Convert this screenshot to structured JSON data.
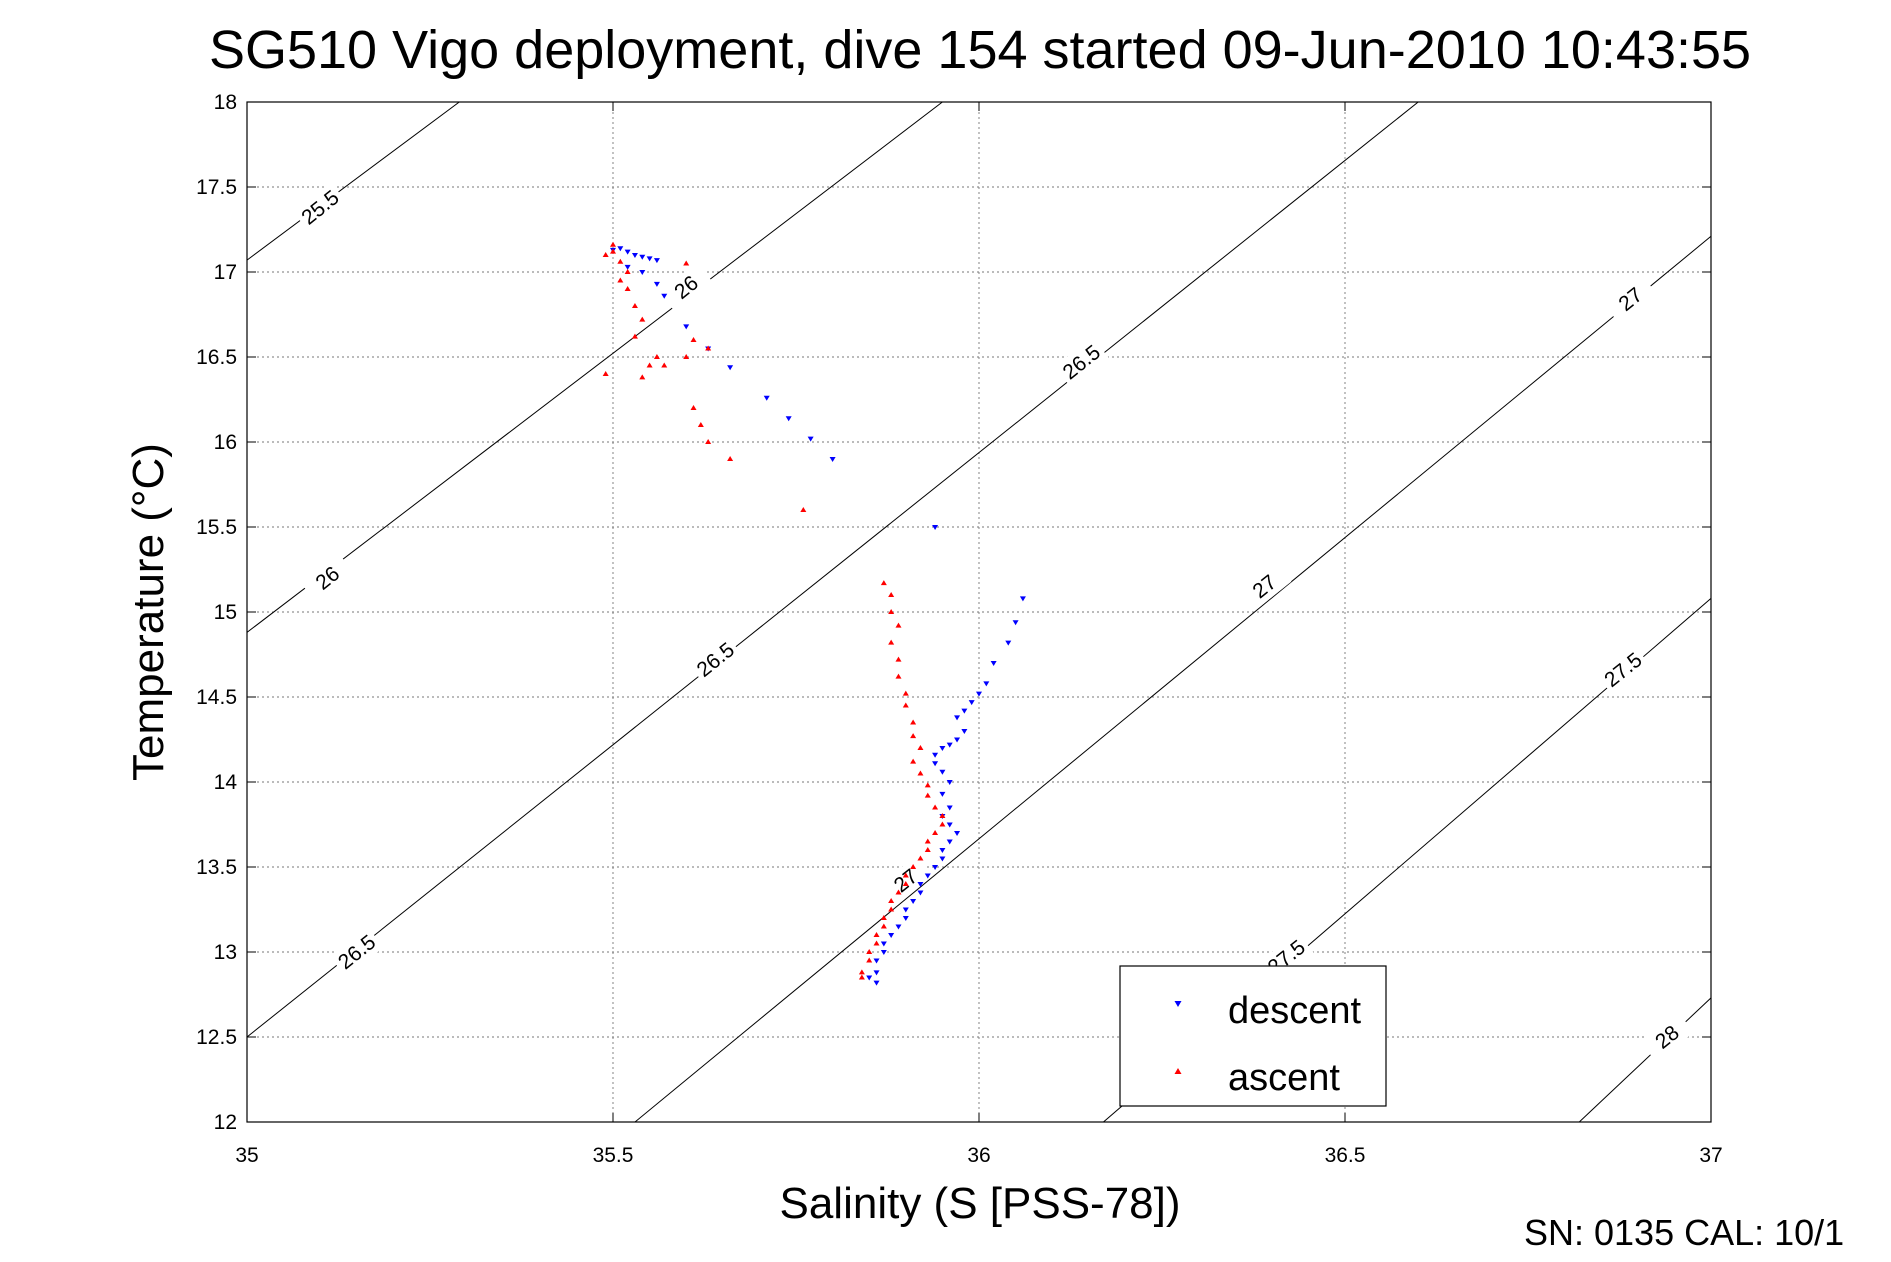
{
  "chart_data": {
    "type": "scatter",
    "title": "SG510 Vigo deployment, dive 154 started 09-Jun-2010 10:43:55",
    "xlabel": "Salinity (S [PSS-78])",
    "ylabel": "Temperature (°C)",
    "xlim": [
      35,
      37
    ],
    "ylim": [
      12,
      18
    ],
    "x_ticks": [
      "35",
      "35.5",
      "36",
      "36.5",
      "37"
    ],
    "y_ticks": [
      "12",
      "12.5",
      "13",
      "13.5",
      "14",
      "14.5",
      "15",
      "15.5",
      "16",
      "16.5",
      "17",
      "17.5",
      "18"
    ],
    "grid": true,
    "legend": {
      "position": "bottom-right",
      "entries": [
        "descent",
        "ascent"
      ]
    },
    "density_contours": {
      "levels": [
        25.5,
        26,
        26.5,
        27,
        27.5,
        28
      ],
      "lines": [
        {
          "level": 25.5,
          "from": [
            35.0,
            17.07
          ],
          "to": [
            35.29,
            18.0
          ]
        },
        {
          "level": 26,
          "from": [
            35.0,
            14.88
          ],
          "to": [
            35.95,
            18.0
          ]
        },
        {
          "level": 26.5,
          "from": [
            35.0,
            12.5
          ],
          "to": [
            36.6,
            18.0
          ]
        },
        {
          "level": 27,
          "from": [
            35.53,
            12.0
          ],
          "to": [
            37.0,
            17.21
          ]
        },
        {
          "level": 27.5,
          "from": [
            36.17,
            12.0
          ],
          "to": [
            37.0,
            15.08
          ]
        },
        {
          "level": 28,
          "from": [
            36.82,
            12.0
          ],
          "to": [
            37.0,
            12.73
          ]
        }
      ],
      "labels": [
        {
          "text": "25.5",
          "x": 35.1,
          "y": 17.38
        },
        {
          "text": "26",
          "x": 35.11,
          "y": 15.2
        },
        {
          "text": "26",
          "x": 35.6,
          "y": 16.91
        },
        {
          "text": "26.5",
          "x": 35.64,
          "y": 14.72
        },
        {
          "text": "26.5",
          "x": 36.14,
          "y": 16.47
        },
        {
          "text": "26.5",
          "x": 35.15,
          "y": 13.0
        },
        {
          "text": "27",
          "x": 35.9,
          "y": 13.42
        },
        {
          "text": "27",
          "x": 36.39,
          "y": 15.15
        },
        {
          "text": "27",
          "x": 36.89,
          "y": 16.84
        },
        {
          "text": "27.5",
          "x": 36.42,
          "y": 12.97
        },
        {
          "text": "27.5",
          "x": 36.88,
          "y": 14.66
        },
        {
          "text": "28",
          "x": 36.94,
          "y": 12.5
        }
      ]
    },
    "series": [
      {
        "name": "descent",
        "color": "#0000ff",
        "marker": "triangle-down",
        "points": [
          [
            35.5,
            17.13
          ],
          [
            35.51,
            17.14
          ],
          [
            35.52,
            17.12
          ],
          [
            35.53,
            17.1
          ],
          [
            35.54,
            17.09
          ],
          [
            35.55,
            17.08
          ],
          [
            35.56,
            17.07
          ],
          [
            35.52,
            17.03
          ],
          [
            35.54,
            17.0
          ],
          [
            35.56,
            16.93
          ],
          [
            35.57,
            16.86
          ],
          [
            35.6,
            16.68
          ],
          [
            35.63,
            16.55
          ],
          [
            35.66,
            16.44
          ],
          [
            35.71,
            16.26
          ],
          [
            35.74,
            16.14
          ],
          [
            35.77,
            16.02
          ],
          [
            35.8,
            15.9
          ],
          [
            35.94,
            15.5
          ],
          [
            36.06,
            15.08
          ],
          [
            36.05,
            14.94
          ],
          [
            36.04,
            14.82
          ],
          [
            36.02,
            14.7
          ],
          [
            36.01,
            14.58
          ],
          [
            36.0,
            14.52
          ],
          [
            35.99,
            14.47
          ],
          [
            35.98,
            14.42
          ],
          [
            35.97,
            14.38
          ],
          [
            35.98,
            14.3
          ],
          [
            35.97,
            14.25
          ],
          [
            35.96,
            14.22
          ],
          [
            35.95,
            14.2
          ],
          [
            35.94,
            14.16
          ],
          [
            35.94,
            14.11
          ],
          [
            35.95,
            14.06
          ],
          [
            35.96,
            14.0
          ],
          [
            35.95,
            13.93
          ],
          [
            35.96,
            13.85
          ],
          [
            35.95,
            13.8
          ],
          [
            35.96,
            13.75
          ],
          [
            35.97,
            13.7
          ],
          [
            35.96,
            13.65
          ],
          [
            35.95,
            13.6
          ],
          [
            35.95,
            13.55
          ],
          [
            35.94,
            13.5
          ],
          [
            35.93,
            13.45
          ],
          [
            35.92,
            13.4
          ],
          [
            35.92,
            13.35
          ],
          [
            35.91,
            13.3
          ],
          [
            35.9,
            13.25
          ],
          [
            35.9,
            13.2
          ],
          [
            35.89,
            13.15
          ],
          [
            35.88,
            13.1
          ],
          [
            35.87,
            13.05
          ],
          [
            35.87,
            13.0
          ],
          [
            35.86,
            12.95
          ],
          [
            35.86,
            12.88
          ],
          [
            35.85,
            12.85
          ],
          [
            35.86,
            12.82
          ]
        ]
      },
      {
        "name": "ascent",
        "color": "#ff0000",
        "marker": "triangle-up",
        "points": [
          [
            35.5,
            17.16
          ],
          [
            35.5,
            17.12
          ],
          [
            35.49,
            17.1
          ],
          [
            35.51,
            17.06
          ],
          [
            35.52,
            17.0
          ],
          [
            35.51,
            16.95
          ],
          [
            35.52,
            16.9
          ],
          [
            35.53,
            16.8
          ],
          [
            35.54,
            16.72
          ],
          [
            35.53,
            16.62
          ],
          [
            35.56,
            16.5
          ],
          [
            35.55,
            16.45
          ],
          [
            35.57,
            16.45
          ],
          [
            35.54,
            16.38
          ],
          [
            35.49,
            16.4
          ],
          [
            35.6,
            16.5
          ],
          [
            35.61,
            16.6
          ],
          [
            35.63,
            16.55
          ],
          [
            35.61,
            16.2
          ],
          [
            35.62,
            16.1
          ],
          [
            35.63,
            16.0
          ],
          [
            35.66,
            15.9
          ],
          [
            35.76,
            15.6
          ],
          [
            35.6,
            17.05
          ],
          [
            35.87,
            15.17
          ],
          [
            35.88,
            15.1
          ],
          [
            35.88,
            15.0
          ],
          [
            35.89,
            14.92
          ],
          [
            35.88,
            14.82
          ],
          [
            35.89,
            14.72
          ],
          [
            35.89,
            14.62
          ],
          [
            35.9,
            14.52
          ],
          [
            35.9,
            14.45
          ],
          [
            35.91,
            14.35
          ],
          [
            35.91,
            14.27
          ],
          [
            35.92,
            14.2
          ],
          [
            35.91,
            14.12
          ],
          [
            35.92,
            14.05
          ],
          [
            35.93,
            13.98
          ],
          [
            35.93,
            13.92
          ],
          [
            35.94,
            13.85
          ],
          [
            35.95,
            13.8
          ],
          [
            35.95,
            13.75
          ],
          [
            35.94,
            13.7
          ],
          [
            35.93,
            13.65
          ],
          [
            35.93,
            13.6
          ],
          [
            35.92,
            13.55
          ],
          [
            35.91,
            13.5
          ],
          [
            35.9,
            13.45
          ],
          [
            35.9,
            13.4
          ],
          [
            35.89,
            13.35
          ],
          [
            35.88,
            13.3
          ],
          [
            35.88,
            13.25
          ],
          [
            35.87,
            13.2
          ],
          [
            35.87,
            13.15
          ],
          [
            35.86,
            13.1
          ],
          [
            35.86,
            13.05
          ],
          [
            35.85,
            13.0
          ],
          [
            35.85,
            12.95
          ],
          [
            35.84,
            12.88
          ],
          [
            35.84,
            12.85
          ]
        ]
      }
    ]
  },
  "footer_text": "SN: 0135  CAL: 10/1"
}
